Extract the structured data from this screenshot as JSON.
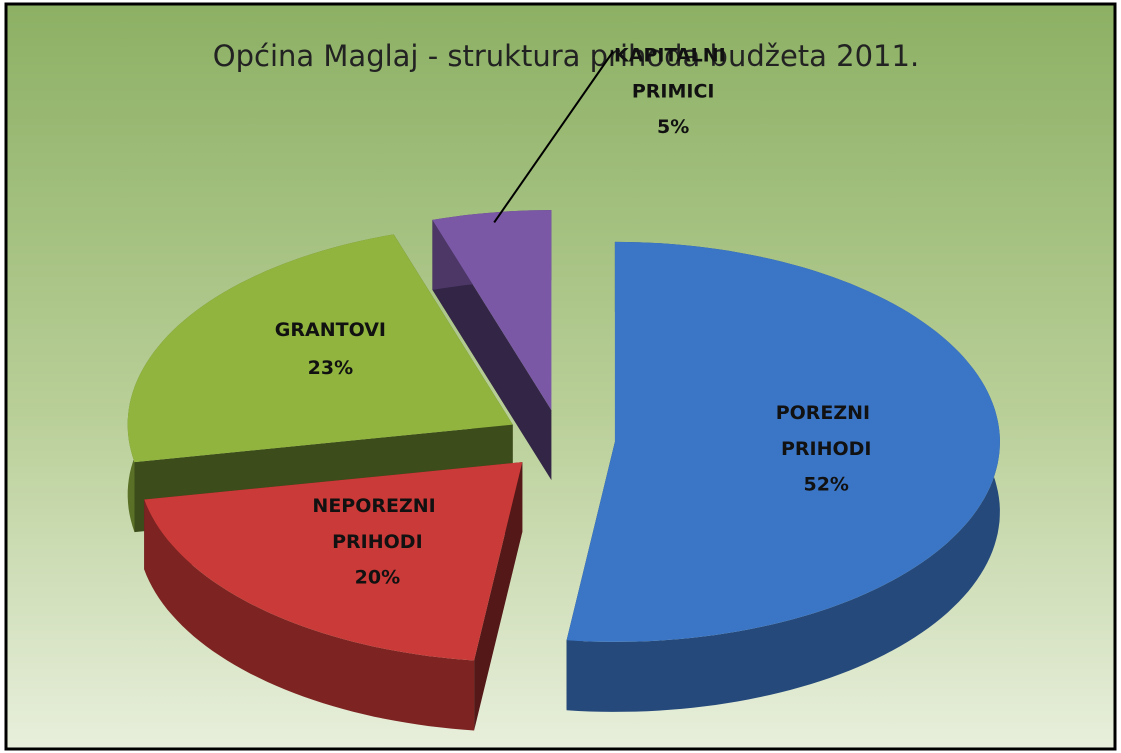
{
  "chart_data": {
    "type": "pie3d",
    "title": "Općina Maglaj - struktura prihoda budžeta 2011.",
    "categories": [
      "POREZNI PRIHODI",
      "NEPOREZNI PRIHODI",
      "GRANTOVI",
      "KAPITALNI PRIMICI"
    ],
    "values": [
      52,
      20,
      23,
      5
    ],
    "value_labels": [
      "52%",
      "20%",
      "23%",
      "5%"
    ],
    "colors": [
      "#3b76c6",
      "#c93a38",
      "#90b43e",
      "#7a58a6"
    ],
    "exploded": true
  }
}
